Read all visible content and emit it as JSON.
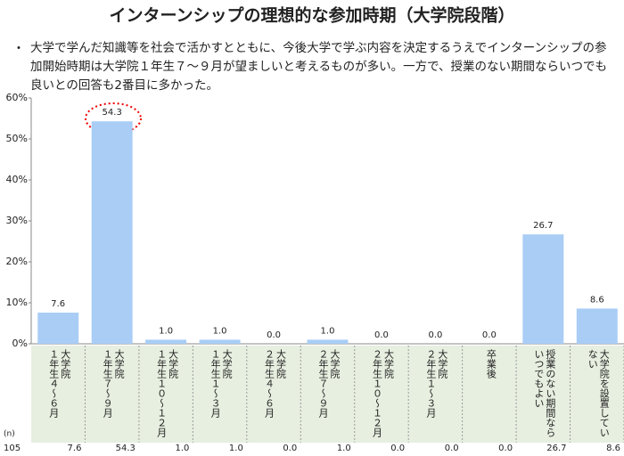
{
  "chart_data": {
    "type": "bar",
    "title": "インターンシップの理想的な参加時期（大学院段階）",
    "note": "大学で学んだ知識等を社会で活かすとともに、今後大学で学ぶ内容を決定するうえでインターンシップの参加開始時期は大学院１年生７～９月が望ましいと考えるものが多い。一方で、授業のない期間ならいつでも良いとの回答も2番目に多かった。",
    "categories": [
      [
        "大学院",
        "１年生４～６月"
      ],
      [
        "大学院",
        "１年生７～９月"
      ],
      [
        "大学院",
        "１年生１０～１２月"
      ],
      [
        "大学院",
        "１年生１～３月"
      ],
      [
        "大学院",
        "２年生４～６月"
      ],
      [
        "大学院",
        "２年生７～９月"
      ],
      [
        "大学院",
        "２年生１０～１２月"
      ],
      [
        "大学院",
        "２年生１～３月"
      ],
      [
        "卒業後"
      ],
      [
        "授業のない期間なら",
        "いつでもよい"
      ],
      [
        "大学院を設置してい",
        "ない"
      ]
    ],
    "values": [
      7.6,
      54.3,
      1.0,
      1.0,
      0.0,
      1.0,
      0.0,
      0.0,
      0.0,
      26.7,
      8.6
    ],
    "value_labels": [
      "7.6",
      "54.3",
      "1.0",
      "1.0",
      "0.0",
      "1.0",
      "0.0",
      "0.0",
      "0.0",
      "26.7",
      "8.6"
    ],
    "color": "#a9cdf5",
    "ylim": [
      0,
      60
    ],
    "yticks": [
      {
        "value": 0,
        "label": "0%"
      },
      {
        "value": 10,
        "label": "10%"
      },
      {
        "value": 20,
        "label": "20%"
      },
      {
        "value": 30,
        "label": "30%"
      },
      {
        "value": 40,
        "label": "40%"
      },
      {
        "value": 50,
        "label": "50%"
      },
      {
        "value": 60,
        "label": "60%"
      }
    ],
    "n_label": "(n)",
    "n": 105
  }
}
